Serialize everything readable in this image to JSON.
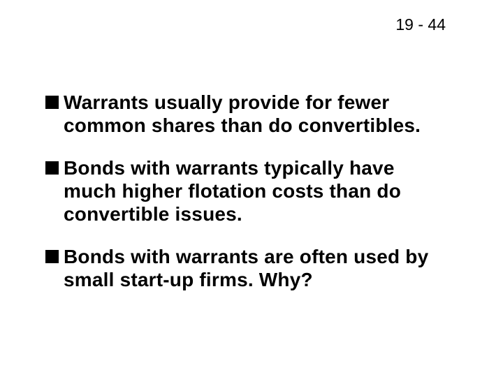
{
  "page_number": "19 - 44",
  "bullets": [
    {
      "text": "Warrants usually provide for fewer common shares than do convertibles."
    },
    {
      "text": "Bonds with warrants typically have much higher flotation costs than do convertible issues."
    },
    {
      "text": "Bonds with warrants are often used by small start-up firms.  Why?"
    }
  ],
  "styling": {
    "background_color": "#ffffff",
    "text_color": "#000000",
    "bullet_color": "#000000",
    "bullet_size": 19,
    "font_size": 28,
    "font_weight": "bold",
    "page_number_fontsize": 23,
    "line_height": 1.18
  }
}
